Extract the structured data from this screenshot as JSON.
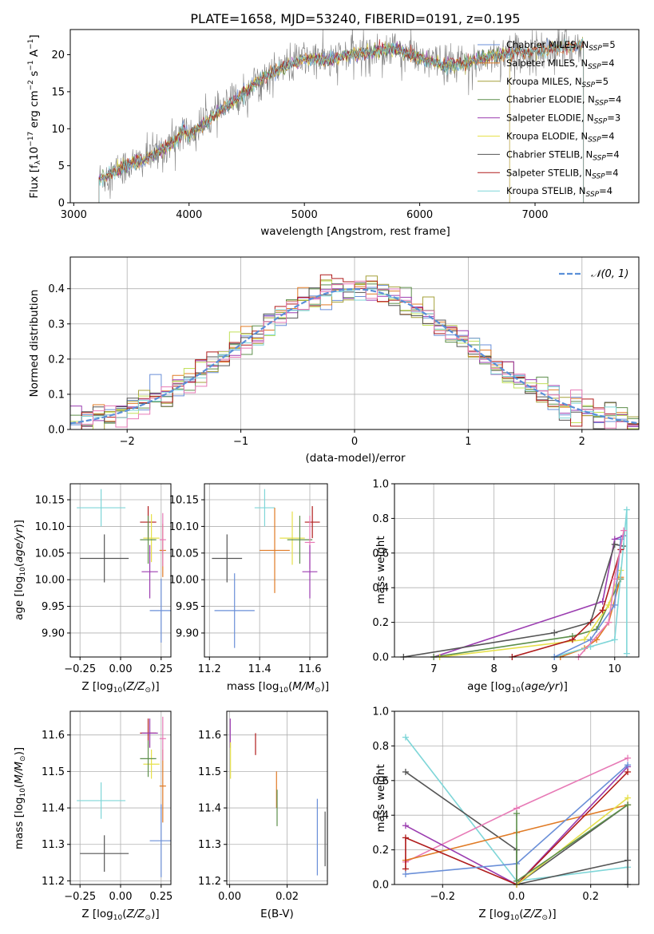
{
  "colors": {
    "Chabrier MILES": "#6a8fd8",
    "Salpeter MILES": "#e07b26",
    "Kroupa MILES": "#a5a03a",
    "Chabrier ELODIE": "#5d8f4b",
    "Salpeter ELODIE": "#9b3db0",
    "Kroupa ELODIE": "#e6e04a",
    "Chabrier STELIB": "#555555",
    "Salpeter STELIB": "#b01c1c",
    "Kroupa STELIB": "#7fd6d8",
    "Kroupa ELODIE (alt)": "#c2e05a",
    "pink": "#e77ab6",
    "normal": "#5a8fd8"
  },
  "chart_data": [
    {
      "id": "spectrum",
      "type": "line",
      "title": "PLATE=1658, MJD=53240, FIBERID=0191, z=0.195",
      "xlabel": "wavelength [Angstrom, rest frame]",
      "ylabel": {
        "pre": "Flux [f",
        "sub1": "λ",
        "mid": "10",
        "sup1": "−17",
        "post1": " erg cm",
        "sup2": "−2",
        "post2": " s",
        "sup3": "−1",
        "post3": " A",
        "sup4": "−1",
        "end": "]"
      },
      "xlim": [
        2970,
        7900
      ],
      "ylim": [
        0,
        23.4
      ],
      "xticks": [
        3000,
        4000,
        5000,
        6000,
        7000
      ],
      "yticks": [
        0,
        5,
        10,
        15,
        20
      ],
      "legend": [
        {
          "name": "Chabrier MILES",
          "nssp": "5"
        },
        {
          "name": "Salpeter MILES",
          "nssp": "4"
        },
        {
          "name": "Kroupa MILES",
          "nssp": "5"
        },
        {
          "name": "Chabrier ELODIE",
          "nssp": "4"
        },
        {
          "name": "Salpeter ELODIE",
          "nssp": "3"
        },
        {
          "name": "Kroupa ELODIE",
          "nssp": "4"
        },
        {
          "name": "Chabrier STELIB",
          "nssp": "4"
        },
        {
          "name": "Salpeter STELIB",
          "nssp": "4"
        },
        {
          "name": "Kroupa STELIB",
          "nssp": "4"
        }
      ],
      "legend_position": "upper right",
      "legend_ssp_label": "SSP",
      "continuum": {
        "wavelength": [
          3220,
          3400,
          3600,
          3750,
          3900,
          3950,
          4000,
          4200,
          4400,
          4600,
          4800,
          5000,
          5200,
          5400,
          5600,
          5800,
          6000,
          6200,
          6400,
          6600,
          6800,
          7000,
          7200,
          7400
        ],
        "flux": [
          3.2,
          4.6,
          5.8,
          7.0,
          8.6,
          10.0,
          9.0,
          11.6,
          13.8,
          16.5,
          18.2,
          19.5,
          19.2,
          20.0,
          20.4,
          20.8,
          19.5,
          18.6,
          18.8,
          19.8,
          20.2,
          20.5,
          20.9,
          21.4
        ]
      },
      "model_wavelength_range": [
        3220,
        7420
      ]
    },
    {
      "id": "residual-histogram",
      "type": "line",
      "xlabel": "(data-model)/error",
      "ylabel": "Normed distribution",
      "xlim": [
        -2.5,
        2.5
      ],
      "ylim": [
        0,
        0.49
      ],
      "xticks": [
        -2,
        -1,
        0,
        1,
        2
      ],
      "yticks": [
        0.0,
        0.1,
        0.2,
        0.3,
        0.4
      ],
      "legend": [
        {
          "name": "𝒩(0, 1)",
          "style": "dashed"
        }
      ],
      "legend_position": "upper right",
      "bin_width": 0.1
    },
    {
      "id": "age-vs-Z",
      "type": "scatter",
      "xlabel": "Z [log10(Z/Z⊙)]",
      "ylabel": "age  [log10(age/yr)]",
      "xlim": [
        -0.31,
        0.31
      ],
      "ylim": [
        9.855,
        10.18
      ],
      "xticks": [
        -0.25,
        0.0,
        0.25
      ],
      "xticklabels": [
        "−0.25",
        "0.00",
        "0.25"
      ],
      "yticks": [
        9.9,
        9.95,
        10.0,
        10.05,
        10.1,
        10.15
      ],
      "points": [
        {
          "x": -0.12,
          "xerr": 0.15,
          "y": 10.135,
          "yerr": 0.035,
          "c": "Kroupa STELIB"
        },
        {
          "x": -0.1,
          "xerr": 0.15,
          "y": 10.04,
          "yerr": 0.045,
          "c": "Chabrier STELIB"
        },
        {
          "x": 0.17,
          "xerr": 0.05,
          "y": 10.108,
          "yerr": 0.03,
          "c": "Salpeter STELIB"
        },
        {
          "x": 0.19,
          "xerr": 0.05,
          "y": 10.078,
          "yerr": 0.045,
          "c": "Kroupa ELODIE"
        },
        {
          "x": 0.17,
          "xerr": 0.05,
          "y": 10.075,
          "yerr": 0.045,
          "c": "Chabrier ELODIE"
        },
        {
          "x": 0.26,
          "xerr": 0.02,
          "y": 10.055,
          "yerr": 0.05,
          "c": "Salpeter MILES"
        },
        {
          "x": 0.26,
          "xerr": 0.02,
          "y": 10.075,
          "yerr": 0.05,
          "c": "pink"
        },
        {
          "x": 0.18,
          "xerr": 0.05,
          "y": 10.015,
          "yerr": 0.05,
          "c": "Salpeter ELODIE"
        },
        {
          "x": 0.25,
          "xerr": 0.07,
          "y": 9.942,
          "yerr": 0.06,
          "c": "Chabrier MILES"
        }
      ]
    },
    {
      "id": "age-vs-mass",
      "type": "scatter",
      "xlabel": "mass [log10(M/M⊙)]",
      "ylabel": "",
      "xlim": [
        11.18,
        11.67
      ],
      "ylim": [
        9.855,
        10.18
      ],
      "xticks": [
        11.2,
        11.4,
        11.6
      ],
      "xticklabels": [
        "11.2",
        "11.4",
        "11.6"
      ],
      "yticks": [
        9.9,
        9.95,
        10.0,
        10.05,
        10.1,
        10.15
      ],
      "points": [
        {
          "x": 11.42,
          "xerr": 0.04,
          "y": 10.135,
          "yerr": 0.035,
          "c": "Kroupa STELIB"
        },
        {
          "x": 11.27,
          "xerr": 0.06,
          "y": 10.04,
          "yerr": 0.045,
          "c": "Chabrier STELIB"
        },
        {
          "x": 11.61,
          "xerr": 0.03,
          "y": 10.108,
          "yerr": 0.03,
          "c": "Salpeter STELIB"
        },
        {
          "x": 11.53,
          "xerr": 0.05,
          "y": 10.078,
          "yerr": 0.05,
          "c": "Kroupa ELODIE"
        },
        {
          "x": 11.56,
          "xerr": 0.05,
          "y": 10.075,
          "yerr": 0.045,
          "c": "Chabrier ELODIE"
        },
        {
          "x": 11.46,
          "xerr": 0.06,
          "y": 10.055,
          "yerr": 0.08,
          "c": "Salpeter MILES"
        },
        {
          "x": 11.6,
          "xerr": 0.02,
          "y": 10.07,
          "yerr": 0.05,
          "c": "pink"
        },
        {
          "x": 11.6,
          "xerr": 0.03,
          "y": 10.015,
          "yerr": 0.05,
          "c": "Salpeter ELODIE"
        },
        {
          "x": 11.3,
          "xerr": 0.08,
          "y": 9.942,
          "yerr": 0.07,
          "c": "Chabrier MILES"
        }
      ]
    },
    {
      "id": "mass-weight-vs-age",
      "type": "line",
      "xlabel": "age  [log10(age/yr)]",
      "ylabel": "mass weight",
      "xlim": [
        6.35,
        10.4
      ],
      "ylim": [
        0,
        1.0
      ],
      "xticks": [
        7,
        8,
        9,
        10
      ],
      "yticks": [
        0.0,
        0.2,
        0.4,
        0.6,
        0.8,
        1.0
      ],
      "series": [
        {
          "c": "Salpeter ELODIE",
          "x": [
            7.0,
            9.8,
            10.0,
            10.15
          ],
          "y": [
            0.0,
            0.32,
            0.68,
            0.7
          ]
        },
        {
          "c": "Chabrier STELIB",
          "x": [
            6.5,
            9.0,
            9.6,
            10.0,
            10.15
          ],
          "y": [
            0.0,
            0.14,
            0.2,
            0.65,
            0.64
          ]
        },
        {
          "c": "Chabrier ELODIE",
          "x": [
            7.0,
            9.3,
            9.7,
            10.1
          ],
          "y": [
            0.0,
            0.12,
            0.16,
            0.45
          ]
        },
        {
          "c": "Kroupa ELODIE",
          "x": [
            7.1,
            9.5,
            9.9,
            10.1
          ],
          "y": [
            0.0,
            0.1,
            0.3,
            0.5
          ]
        },
        {
          "c": "Salpeter MILES",
          "x": [
            9.1,
            9.5,
            9.7,
            9.9,
            10.1
          ],
          "y": [
            0.0,
            0.05,
            0.1,
            0.2,
            0.46
          ]
        },
        {
          "c": "Kroupa STELIB",
          "x": [
            9.0,
            9.6,
            10.0,
            10.2,
            10.2
          ],
          "y": [
            0.0,
            0.06,
            0.1,
            0.85,
            0.02
          ]
        },
        {
          "c": "Salpeter STELIB",
          "x": [
            8.3,
            9.3,
            9.8,
            10.1
          ],
          "y": [
            0.0,
            0.1,
            0.27,
            0.62
          ]
        },
        {
          "c": "Chabrier MILES",
          "x": [
            9.0,
            9.6,
            10.0,
            10.1
          ],
          "y": [
            0.0,
            0.1,
            0.3,
            0.68
          ]
        },
        {
          "c": "pink",
          "x": [
            9.4,
            9.9,
            10.0,
            10.15
          ],
          "y": [
            0.0,
            0.2,
            0.45,
            0.73
          ]
        }
      ]
    },
    {
      "id": "mass-vs-Z",
      "type": "scatter",
      "xlabel": "Z [log10(Z/Z⊙)]",
      "ylabel": "mass [log10(M/M⊙)]",
      "xlim": [
        -0.31,
        0.31
      ],
      "ylim": [
        11.19,
        11.665
      ],
      "xticks": [
        -0.25,
        0.0,
        0.25
      ],
      "xticklabels": [
        "−0.25",
        "0.00",
        "0.25"
      ],
      "yticks": [
        11.2,
        11.3,
        11.4,
        11.5,
        11.6
      ],
      "points": [
        {
          "x": -0.12,
          "xerr": 0.15,
          "y": 11.42,
          "yerr": 0.05,
          "c": "Kroupa STELIB"
        },
        {
          "x": -0.1,
          "xerr": 0.15,
          "y": 11.275,
          "yerr": 0.05,
          "c": "Chabrier STELIB"
        },
        {
          "x": 0.17,
          "xerr": 0.05,
          "y": 11.605,
          "yerr": 0.04,
          "c": "Salpeter STELIB"
        },
        {
          "x": 0.19,
          "xerr": 0.05,
          "y": 11.52,
          "yerr": 0.04,
          "c": "Kroupa ELODIE"
        },
        {
          "x": 0.17,
          "xerr": 0.05,
          "y": 11.535,
          "yerr": 0.05,
          "c": "Chabrier ELODIE"
        },
        {
          "x": 0.26,
          "xerr": 0.02,
          "y": 11.46,
          "yerr": 0.1,
          "c": "Salpeter MILES"
        },
        {
          "x": 0.26,
          "xerr": 0.02,
          "y": 11.59,
          "yerr": 0.06,
          "c": "pink"
        },
        {
          "x": 0.18,
          "xerr": 0.05,
          "y": 11.605,
          "yerr": 0.04,
          "c": "Salpeter ELODIE"
        },
        {
          "x": 0.25,
          "xerr": 0.07,
          "y": 11.31,
          "yerr": 0.1,
          "c": "Chabrier MILES"
        }
      ]
    },
    {
      "id": "mass-vs-ebv",
      "type": "scatter",
      "xlabel": "E(B-V)",
      "ylabel": "",
      "xlim": [
        -0.001,
        0.034
      ],
      "ylim": [
        11.19,
        11.665
      ],
      "xticks": [
        0.0,
        0.02
      ],
      "xticklabels": [
        "0.00",
        "0.02"
      ],
      "yticks": [
        11.2,
        11.3,
        11.4,
        11.5,
        11.6
      ],
      "points": [
        {
          "x": 0.0002,
          "xerr": 0,
          "y": 11.605,
          "yerr": 0.04,
          "c": "Salpeter ELODIE"
        },
        {
          "x": 0.0003,
          "xerr": 0,
          "y": 11.53,
          "yerr": 0.05,
          "c": "Kroupa ELODIE"
        },
        {
          "x": 0.009,
          "xerr": 0,
          "y": 11.575,
          "yerr": 0.03,
          "c": "Salpeter STELIB"
        },
        {
          "x": 0.0163,
          "xerr": 0,
          "y": 11.45,
          "yerr": 0.05,
          "c": "Salpeter MILES"
        },
        {
          "x": 0.0165,
          "xerr": 0,
          "y": 11.4,
          "yerr": 0.05,
          "c": "Chabrier ELODIE"
        },
        {
          "x": 0.0305,
          "xerr": 0,
          "y": 11.32,
          "yerr": 0.105,
          "c": "Chabrier MILES"
        },
        {
          "x": 0.0332,
          "xerr": 0,
          "y": 11.315,
          "yerr": 0.075,
          "c": "Chabrier STELIB"
        }
      ]
    },
    {
      "id": "mass-weight-vs-Z",
      "type": "line",
      "xlabel": "Z [log10(Z/Z⊙)]",
      "ylabel": "mass weight",
      "xlim": [
        -0.33,
        0.33
      ],
      "ylim": [
        0,
        1.0
      ],
      "xticks": [
        -0.2,
        0.0,
        0.2
      ],
      "xticklabels": [
        "−0.2",
        "0.0",
        "0.2"
      ],
      "yticks": [
        0.0,
        0.2,
        0.4,
        0.6,
        0.8,
        1.0
      ],
      "series": [
        {
          "c": "Kroupa STELIB",
          "x": [
            -0.3,
            0.0,
            0.3
          ],
          "y": [
            0.85,
            0.02,
            0.1
          ]
        },
        {
          "c": "Chabrier STELIB",
          "x": [
            -0.3,
            0.0,
            0.0,
            0.3,
            0.3,
            0.0,
            0.3
          ],
          "y": [
            0.65,
            0.2,
            0.0,
            0.46,
            0.0,
            0.0,
            0.14
          ]
        },
        {
          "c": "pink",
          "x": [
            -0.3,
            0.0,
            0.3
          ],
          "y": [
            0.13,
            0.44,
            0.73
          ]
        },
        {
          "c": "Salpeter MILES",
          "x": [
            -0.3,
            0.0,
            0.3
          ],
          "y": [
            0.14,
            0.3,
            0.46
          ]
        },
        {
          "c": "Salpeter ELODIE",
          "x": [
            -0.3,
            0.0,
            0.3
          ],
          "y": [
            0.34,
            0.0,
            0.68
          ]
        },
        {
          "c": "Salpeter STELIB",
          "x": [
            -0.3,
            -0.3,
            0.0,
            0.3
          ],
          "y": [
            0.09,
            0.27,
            0.0,
            0.65
          ]
        },
        {
          "c": "Chabrier MILES",
          "x": [
            -0.3,
            0.0,
            0.3
          ],
          "y": [
            0.06,
            0.12,
            0.69
          ]
        },
        {
          "c": "Kroupa ELODIE",
          "x": [
            0.0,
            0.3
          ],
          "y": [
            0.0,
            0.5
          ]
        },
        {
          "c": "Chabrier ELODIE",
          "x": [
            0.0,
            0.0,
            0.3
          ],
          "y": [
            0.41,
            0.02,
            0.46
          ]
        }
      ]
    }
  ]
}
